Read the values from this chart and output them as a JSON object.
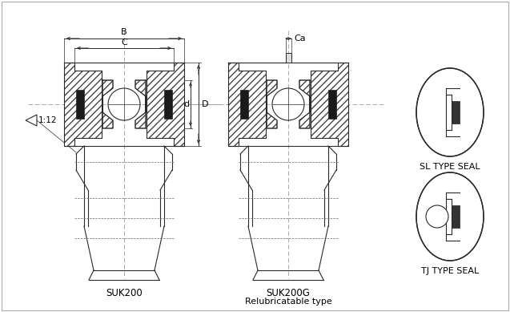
{
  "bg_color": "#ffffff",
  "line_color": "#2a2a2a",
  "fig_width": 6.37,
  "fig_height": 3.89,
  "label_B": "B",
  "label_C": "C",
  "label_Ca": "Ca",
  "label_d": "d",
  "label_D": "D",
  "label_taper": "1:12",
  "label_suk200": "SUK200",
  "label_suk200g": "SUK200G",
  "label_relub": "Relubricatable type",
  "label_sl": "SL TYPE SEAL",
  "label_tj": "TJ TYPE SEAL",
  "font_size": 8,
  "font_size_small": 7
}
